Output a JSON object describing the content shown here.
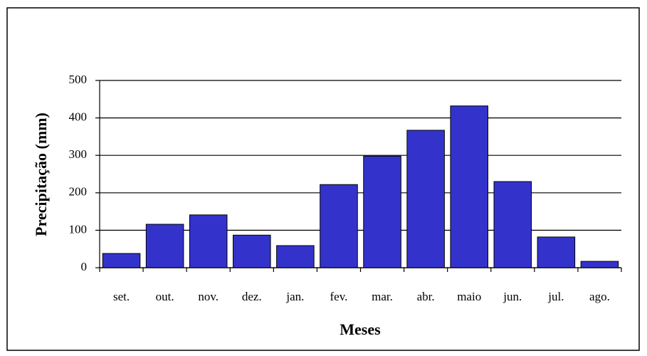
{
  "chart_data": {
    "type": "bar",
    "x_label": "Meses",
    "y_label": "Precipitação (mm)",
    "categories": [
      "set.",
      "out.",
      "nov.",
      "dez.",
      "jan.",
      "fev.",
      "mar.",
      "abr.",
      "maio",
      "jun.",
      "jul.",
      "ago."
    ],
    "values": [
      38,
      116,
      141,
      87,
      59,
      222,
      298,
      367,
      432,
      230,
      82,
      17
    ],
    "color": "#3333cc",
    "ylim": [
      0,
      500
    ],
    "yticks": [
      0,
      100,
      200,
      300,
      400,
      500
    ],
    "grid": true
  }
}
